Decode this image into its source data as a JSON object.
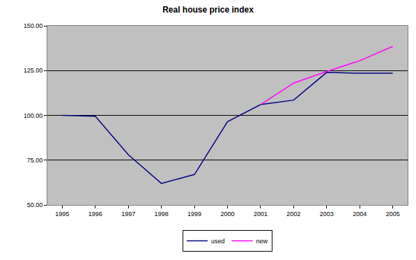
{
  "chart_data": {
    "type": "line",
    "title": "Real house price index",
    "categories": [
      "1995",
      "1996",
      "1997",
      "1998",
      "1999",
      "2000",
      "2001",
      "2002",
      "2003",
      "2004",
      "2005"
    ],
    "series": [
      {
        "name": "used",
        "color": "#000080",
        "values": [
          100,
          99.5,
          78,
          62,
          67,
          96.5,
          106,
          108.5,
          124,
          123.5,
          123.5
        ]
      },
      {
        "name": "new",
        "color": "#ff00ff",
        "values": [
          null,
          null,
          null,
          null,
          null,
          null,
          106,
          118,
          124.5,
          130.5,
          138.5
        ]
      }
    ],
    "ylim": [
      50,
      150
    ],
    "yticks": [
      {
        "value": 50,
        "label": "50.00"
      },
      {
        "value": 75,
        "label": "75.00"
      },
      {
        "value": 100,
        "label": "100.00"
      },
      {
        "value": 125,
        "label": "125.00"
      },
      {
        "value": 150,
        "label": "150.00"
      }
    ],
    "grid": true,
    "legend": "bottom"
  }
}
